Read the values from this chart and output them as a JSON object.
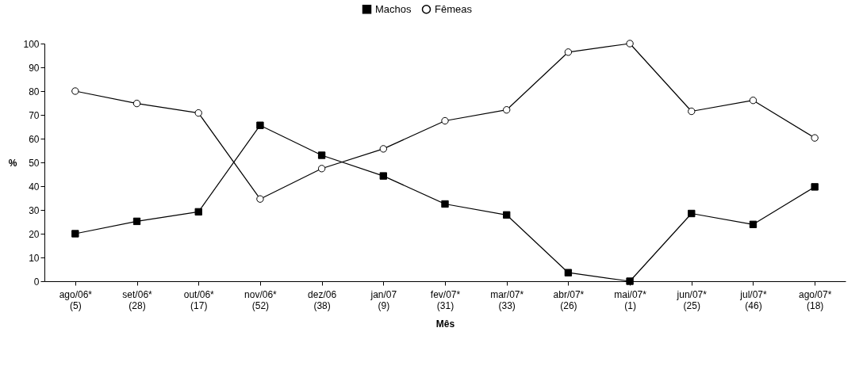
{
  "chart_data": {
    "type": "line",
    "xlabel": "Mês",
    "ylabel": "%",
    "categories": [
      "ago/06*\n(5)",
      "set/06*\n(28)",
      "out/06*\n(17)",
      "nov/06*\n(52)",
      "dez/06\n(38)",
      "jan/07\n(9)",
      "fev/07*\n(31)",
      "mar/07*\n(33)",
      "abr/07*\n(26)",
      "mai/07*\n(1)",
      "jun/07*\n(25)",
      "jul/07*\n(46)",
      "ago/07*\n(18)"
    ],
    "series": [
      {
        "name": "Machos",
        "color": "#000000",
        "marker": "square",
        "values": [
          20,
          25.2,
          29.2,
          65.6,
          53,
          44.3,
          32.5,
          27.9,
          3.6,
          0,
          28.5,
          23.9,
          39.7
        ]
      },
      {
        "name": "Fêmeas",
        "color": "#000000",
        "marker": "circle",
        "values": [
          80,
          74.8,
          70.8,
          34.6,
          47.4,
          55.7,
          67.5,
          72.1,
          96.4,
          100,
          71.5,
          76.1,
          60.3
        ]
      }
    ],
    "ylim": [
      0,
      100
    ],
    "yticks": [
      0,
      10,
      20,
      30,
      40,
      50,
      60,
      70,
      80,
      90,
      100
    ],
    "grid": false,
    "legend": "top"
  }
}
